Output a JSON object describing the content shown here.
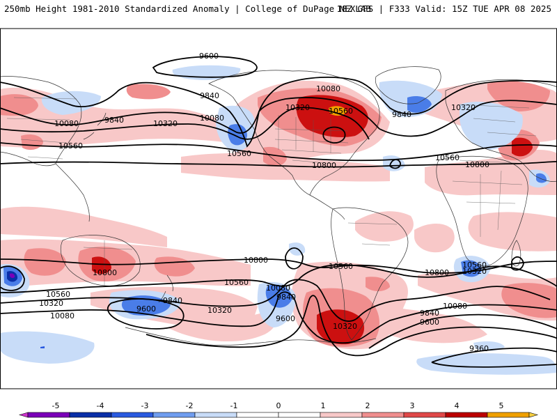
{
  "header": {
    "left": "250mb Height 1981-2010 Standardized Anomaly | College of DuPage NEXLAB",
    "right": "18Z GFS | F333 Valid: 15Z TUE APR 08 2025"
  },
  "contour_labels": [
    {
      "text": "9600"
    },
    {
      "text": "9840"
    },
    {
      "text": "10080"
    },
    {
      "text": "9840"
    },
    {
      "text": "10320"
    },
    {
      "text": "10080"
    },
    {
      "text": "10080"
    },
    {
      "text": "10560"
    },
    {
      "text": "10560"
    },
    {
      "text": "10320"
    },
    {
      "text": "10560"
    },
    {
      "text": "9840"
    },
    {
      "text": "10320"
    },
    {
      "text": "10560"
    },
    {
      "text": "10800"
    },
    {
      "text": "10800"
    },
    {
      "text": "10800"
    },
    {
      "text": "10800"
    },
    {
      "text": "10800"
    },
    {
      "text": "10800"
    },
    {
      "text": "10560"
    },
    {
      "text": "10560"
    },
    {
      "text": "10080"
    },
    {
      "text": "9840"
    },
    {
      "text": "10560"
    },
    {
      "text": "10320"
    },
    {
      "text": "10320"
    },
    {
      "text": "10080"
    },
    {
      "text": "9840"
    },
    {
      "text": "9600"
    },
    {
      "text": "10320"
    },
    {
      "text": "10080"
    },
    {
      "text": "9840"
    },
    {
      "text": "9600"
    },
    {
      "text": "10320"
    },
    {
      "text": "10560"
    },
    {
      "text": "10320"
    },
    {
      "text": "10080"
    },
    {
      "text": "9840"
    },
    {
      "text": "9600"
    },
    {
      "text": "9360"
    }
  ],
  "colorbar": {
    "ticks": [
      "-5",
      "-4",
      "-3",
      "-2",
      "-1",
      "0",
      "1",
      "2",
      "3",
      "4",
      "5"
    ],
    "colors": [
      "#cc33cc",
      "#7a00b8",
      "#0a2fa8",
      "#2a5ae0",
      "#6f9df0",
      "#c8dcf8",
      "#ffffff",
      "#ffffff",
      "#f8c8c8",
      "#f08e8e",
      "#e04848",
      "#bb0000",
      "#f0a000",
      "#f8d040"
    ]
  },
  "legend_range": [
    -5,
    5
  ]
}
